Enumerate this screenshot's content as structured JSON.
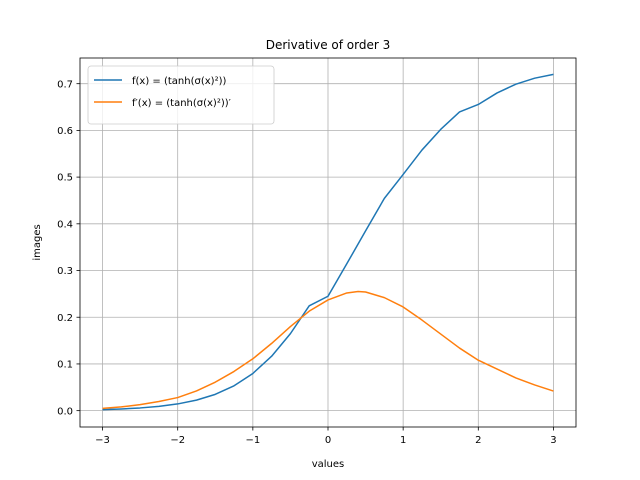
{
  "chart_data": {
    "type": "line",
    "title": "Derivative of order 3",
    "xlabel": "values",
    "ylabel": "images",
    "xlim": [
      -3.3,
      3.3
    ],
    "ylim": [
      -0.035,
      0.755
    ],
    "xticks": [
      -3,
      -2,
      -1,
      0,
      1,
      2,
      3
    ],
    "xtick_labels": [
      "−3",
      "−2",
      "−1",
      "0",
      "1",
      "2",
      "3"
    ],
    "yticks": [
      0.0,
      0.1,
      0.2,
      0.3,
      0.4,
      0.5,
      0.6,
      0.7
    ],
    "ytick_labels": [
      "0.0",
      "0.1",
      "0.2",
      "0.3",
      "0.4",
      "0.5",
      "0.6",
      "0.7"
    ],
    "grid": true,
    "legend_position": "top-left",
    "series": [
      {
        "name": "f(x) = (tanh(σ(x)²))",
        "color": "#1f77b4",
        "x": [
          -3.0,
          -2.75,
          -2.5,
          -2.25,
          -2.0,
          -1.75,
          -1.5,
          -1.25,
          -1.0,
          -0.75,
          -0.5,
          -0.25,
          0.0,
          0.25,
          0.5,
          0.75,
          1.0,
          1.25,
          1.5,
          1.75,
          2.0,
          2.25,
          2.5,
          2.75,
          3.0
        ],
        "y": [
          0.0022,
          0.0036,
          0.0058,
          0.0092,
          0.0144,
          0.0225,
          0.0349,
          0.0532,
          0.0796,
          0.1165,
          0.1649,
          0.2244,
          0.2449,
          0.3144,
          0.3849,
          0.4545,
          0.5057,
          0.5579,
          0.6023,
          0.6396,
          0.6555,
          0.6802,
          0.699,
          0.7118,
          0.72
        ]
      },
      {
        "name": "f′(x) = (tanh(σ(x)²))′",
        "color": "#ff7f0e",
        "x": [
          -3.0,
          -2.75,
          -2.5,
          -2.25,
          -2.0,
          -1.75,
          -1.5,
          -1.25,
          -1.0,
          -0.75,
          -0.5,
          -0.25,
          0.0,
          0.25,
          0.4,
          0.5,
          0.75,
          1.0,
          1.25,
          1.5,
          1.75,
          2.0,
          2.25,
          2.5,
          2.75,
          3.0
        ],
        "y": [
          0.005,
          0.008,
          0.0128,
          0.0195,
          0.028,
          0.0422,
          0.061,
          0.084,
          0.111,
          0.144,
          0.18,
          0.213,
          0.237,
          0.252,
          0.255,
          0.254,
          0.242,
          0.222,
          0.194,
          0.164,
          0.134,
          0.108,
          0.089,
          0.07,
          0.055,
          0.042
        ]
      }
    ]
  }
}
